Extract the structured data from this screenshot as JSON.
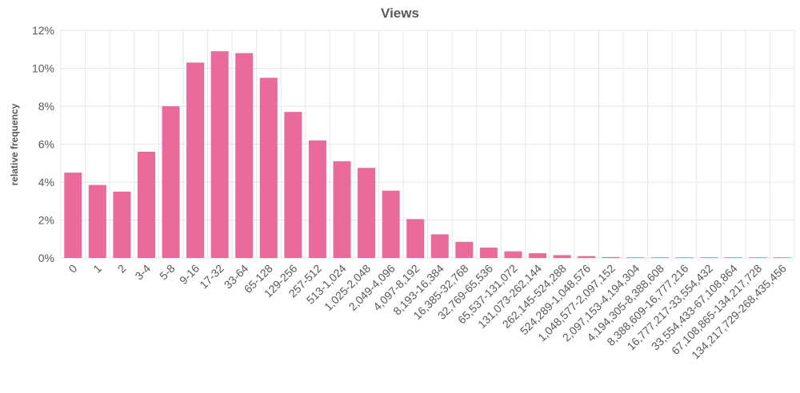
{
  "chart_data": {
    "type": "bar",
    "title": "Views",
    "xlabel": "",
    "ylabel": "relative frequency",
    "ylim": [
      0,
      12
    ],
    "yticks": [
      0,
      2,
      4,
      6,
      8,
      10,
      12
    ],
    "ytick_labels": [
      "0%",
      "2%",
      "4%",
      "6%",
      "8%",
      "10%",
      "12%"
    ],
    "grid": true,
    "bar_color": "#ea6a9c",
    "categories": [
      "0",
      "1",
      "2",
      "3-4",
      "5-8",
      "9-16",
      "17-32",
      "33-64",
      "65-128",
      "129-256",
      "257-512",
      "513-1,024",
      "1,025-2,048",
      "2,049-4,096",
      "4,097-8,192",
      "8,193-16,384",
      "16,385-32,768",
      "32,769-65,536",
      "65,537-131,072",
      "131,073-262,144",
      "262,145-524,288",
      "524,289-1,048,576",
      "1,048,577-2,097,152",
      "2,097,153-4,194,304",
      "4,194,305-8,388,608",
      "8,388,609-16,777,216",
      "16,777,217-33,554,432",
      "33,554,433-67,108,864",
      "67,108,865-134,217,728",
      "134,217,729-268,435,456"
    ],
    "values": [
      4.5,
      3.85,
      3.5,
      5.6,
      8.0,
      10.3,
      10.9,
      10.8,
      9.5,
      7.7,
      6.2,
      5.1,
      4.75,
      3.55,
      2.05,
      1.25,
      0.85,
      0.55,
      0.35,
      0.25,
      0.15,
      0.1,
      0.05,
      0.02,
      0.01,
      0.01,
      0.01,
      0.005,
      0.005,
      0.01
    ]
  }
}
